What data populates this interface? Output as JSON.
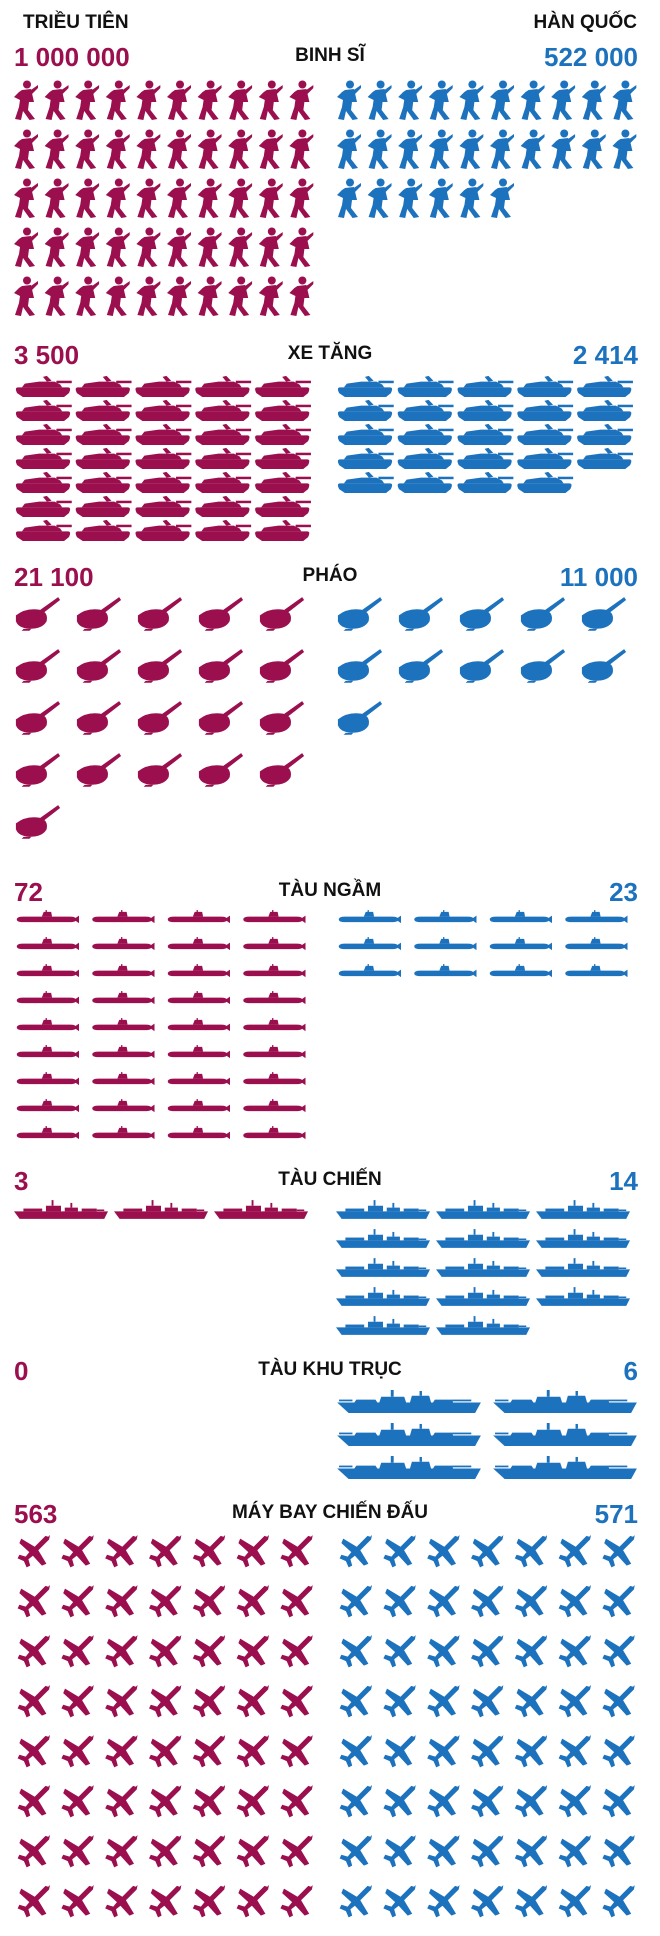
{
  "colors": {
    "north": "#9b0f4e",
    "south": "#1d72be"
  },
  "header": {
    "north_label": "TRIỀU TIÊN",
    "south_label": "HÀN QUỐC"
  },
  "chart_data": {
    "type": "pictograph",
    "series": [
      {
        "name": "TRIỀU TIÊN",
        "color": "#9b0f4e"
      },
      {
        "name": "HÀN QUỐC",
        "color": "#1d72be"
      }
    ],
    "sections": [
      {
        "key": "soldiers",
        "category": "BINH SĨ",
        "icon": "soldier-icon",
        "north_label": "1 000 000",
        "south_label": "522 000",
        "north": 1000000,
        "south": 522000,
        "north_icons": 50,
        "south_icons": 26
      },
      {
        "key": "tanks",
        "category": "XE TĂNG",
        "icon": "tank-icon",
        "north_label": "3 500",
        "south_label": "2 414",
        "north": 3500,
        "south": 2414,
        "north_icons": 35,
        "south_icons": 24
      },
      {
        "key": "artillery",
        "category": "PHÁO",
        "icon": "artillery-icon",
        "north_label": "21 100",
        "south_label": "11 000",
        "north": 21100,
        "south": 11000,
        "north_icons": 21,
        "south_icons": 11
      },
      {
        "key": "submarines",
        "category": "TÀU NGẦM",
        "icon": "submarine-icon",
        "north_label": "72",
        "south_label": "23",
        "north": 72,
        "south": 23,
        "north_icons": 36,
        "south_icons": 12
      },
      {
        "key": "warships",
        "category": "TÀU CHIẾN",
        "icon": "warship-icon",
        "north_label": "3",
        "south_label": "14",
        "north": 3,
        "south": 14,
        "north_icons": 3,
        "south_icons": 14
      },
      {
        "key": "destroyers",
        "category": "TÀU KHU TRỤC",
        "icon": "destroyer-icon",
        "north_label": "0",
        "south_label": "6",
        "north": 0,
        "south": 6,
        "north_icons": 0,
        "south_icons": 6
      },
      {
        "key": "fighters",
        "category": "MÁY BAY CHIẾN ĐẤU",
        "icon": "fighter-jet-icon",
        "north_label": "563",
        "south_label": "571",
        "north": 563,
        "south": 571,
        "north_icons": 56,
        "south_icons": 56
      }
    ]
  }
}
